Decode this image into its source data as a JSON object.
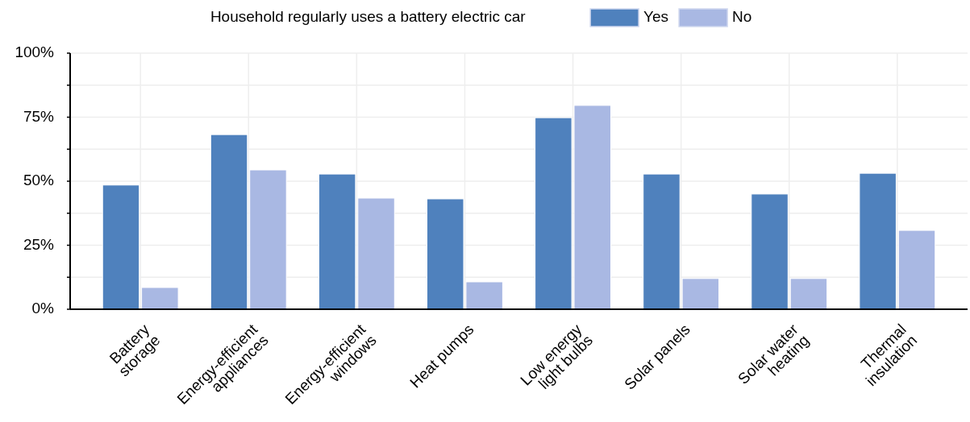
{
  "chart_data": {
    "type": "bar",
    "legend_title": "Household regularly uses a battery electric car",
    "legend": "top",
    "categories": [
      "Battery\nstorage",
      "Energy-efficient\nappliances",
      "Energy-efficient\nwindows",
      "Heat pumps",
      "Low energy\nlight bulbs",
      "Solar panels",
      "Solar water\nheating",
      "Thermal\ninsulation"
    ],
    "series": [
      {
        "name": "Yes",
        "color": "#4f81bd",
        "values": [
          48.5,
          68.2,
          52.8,
          43.1,
          74.8,
          52.8,
          45,
          53.1
        ]
      },
      {
        "name": "No",
        "color": "#a9b8e3",
        "values": [
          8.5,
          54.4,
          43.4,
          10.7,
          79.6,
          12,
          12,
          30.8
        ]
      }
    ],
    "ylim": [
      0,
      100
    ],
    "yticks": [
      {
        "value": 0,
        "label": "0%"
      },
      {
        "value": 12.5,
        "label": null
      },
      {
        "value": 25,
        "label": "25%"
      },
      {
        "value": 37.5,
        "label": null
      },
      {
        "value": 50,
        "label": "50%"
      },
      {
        "value": 62.5,
        "label": null
      },
      {
        "value": 75,
        "label": "75%"
      },
      {
        "value": 87.5,
        "label": null
      },
      {
        "value": 100,
        "label": "100%"
      }
    ],
    "grid": true
  }
}
